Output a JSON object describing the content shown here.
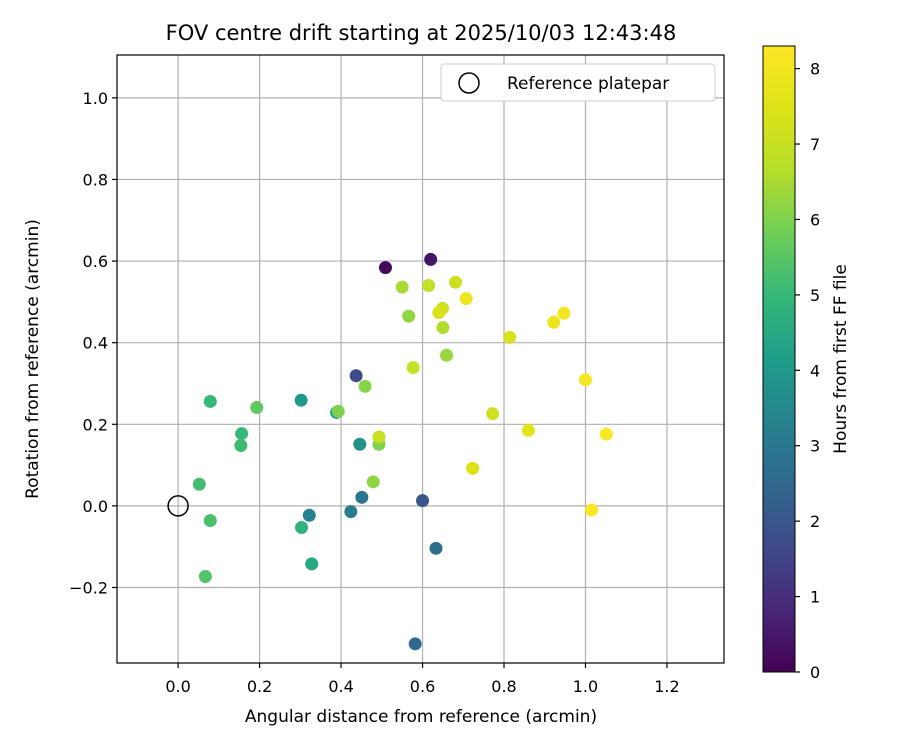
{
  "chart_data": {
    "type": "scatter",
    "title": "FOV centre drift starting at 2025/10/03 12:43:48",
    "xlabel": "Angular distance from reference (arcmin)",
    "ylabel": "Rotation from reference (arcmin)",
    "xlim": [
      -0.15,
      1.34
    ],
    "ylim": [
      -0.385,
      1.105
    ],
    "xticks": [
      0.0,
      0.2,
      0.4,
      0.6,
      0.8,
      1.0,
      1.2
    ],
    "xtick_labels": [
      "0.0",
      "0.2",
      "0.4",
      "0.6",
      "0.8",
      "1.0",
      "1.2"
    ],
    "yticks": [
      -0.2,
      0.0,
      0.2,
      0.4,
      0.6,
      0.8,
      1.0
    ],
    "ytick_labels": [
      "−0.2",
      "0.0",
      "0.2",
      "0.4",
      "0.6",
      "0.8",
      "1.0"
    ],
    "grid": true,
    "legend": {
      "label": "Reference platepar",
      "position": "top-right"
    },
    "reference_point": {
      "x": 0.0,
      "y": 0.0
    },
    "colorbar": {
      "label": "Hours from first FF file",
      "min": 0,
      "max": 8.3,
      "colormap": "viridis",
      "ticks": [
        0,
        1,
        2,
        3,
        4,
        5,
        6,
        7,
        8
      ],
      "tick_labels": [
        "0",
        "1",
        "2",
        "3",
        "4",
        "5",
        "6",
        "7",
        "8"
      ]
    },
    "points": [
      {
        "x": 0.509,
        "y": 0.584,
        "hours": 0.2
      },
      {
        "x": 0.62,
        "y": 0.604,
        "hours": 0.4
      },
      {
        "x": 0.437,
        "y": 0.319,
        "hours": 1.7
      },
      {
        "x": 0.6,
        "y": 0.013,
        "hours": 2.0
      },
      {
        "x": 0.633,
        "y": -0.104,
        "hours": 2.7
      },
      {
        "x": 0.582,
        "y": -0.338,
        "hours": 2.5
      },
      {
        "x": 0.451,
        "y": 0.021,
        "hours": 3.0
      },
      {
        "x": 0.424,
        "y": -0.014,
        "hours": 3.2
      },
      {
        "x": 0.322,
        "y": -0.023,
        "hours": 3.3
      },
      {
        "x": 0.446,
        "y": 0.151,
        "hours": 3.8
      },
      {
        "x": 0.302,
        "y": 0.259,
        "hours": 4.0
      },
      {
        "x": 0.389,
        "y": 0.229,
        "hours": 4.2
      },
      {
        "x": 0.328,
        "y": -0.142,
        "hours": 4.5
      },
      {
        "x": 0.303,
        "y": -0.053,
        "hours": 4.8
      },
      {
        "x": 0.079,
        "y": 0.256,
        "hours": 5.0
      },
      {
        "x": 0.156,
        "y": 0.177,
        "hours": 5.0
      },
      {
        "x": 0.154,
        "y": 0.148,
        "hours": 5.1
      },
      {
        "x": 0.052,
        "y": 0.053,
        "hours": 5.2
      },
      {
        "x": 0.079,
        "y": -0.036,
        "hours": 5.3
      },
      {
        "x": 0.067,
        "y": -0.173,
        "hours": 5.4
      },
      {
        "x": 0.193,
        "y": 0.241,
        "hours": 5.6
      },
      {
        "x": 0.393,
        "y": 0.232,
        "hours": 6.0
      },
      {
        "x": 0.493,
        "y": 0.151,
        "hours": 6.0
      },
      {
        "x": 0.459,
        "y": 0.293,
        "hours": 6.1
      },
      {
        "x": 0.479,
        "y": 0.059,
        "hours": 6.2
      },
      {
        "x": 0.566,
        "y": 0.465,
        "hours": 6.2
      },
      {
        "x": 0.659,
        "y": 0.369,
        "hours": 6.3
      },
      {
        "x": 0.55,
        "y": 0.536,
        "hours": 6.5
      },
      {
        "x": 0.65,
        "y": 0.437,
        "hours": 6.6
      },
      {
        "x": 0.615,
        "y": 0.54,
        "hours": 6.9
      },
      {
        "x": 0.577,
        "y": 0.339,
        "hours": 7.0
      },
      {
        "x": 0.493,
        "y": 0.169,
        "hours": 7.0
      },
      {
        "x": 0.681,
        "y": 0.548,
        "hours": 7.1
      },
      {
        "x": 0.649,
        "y": 0.484,
        "hours": 7.2
      },
      {
        "x": 0.64,
        "y": 0.474,
        "hours": 7.4
      },
      {
        "x": 0.772,
        "y": 0.226,
        "hours": 7.2
      },
      {
        "x": 0.814,
        "y": 0.413,
        "hours": 7.3
      },
      {
        "x": 0.723,
        "y": 0.092,
        "hours": 7.5
      },
      {
        "x": 0.86,
        "y": 0.185,
        "hours": 7.6
      },
      {
        "x": 0.707,
        "y": 0.508,
        "hours": 7.9
      },
      {
        "x": 0.922,
        "y": 0.45,
        "hours": 7.9
      },
      {
        "x": 0.947,
        "y": 0.472,
        "hours": 8.0
      },
      {
        "x": 1.0,
        "y": 0.309,
        "hours": 8.1
      },
      {
        "x": 1.051,
        "y": 0.176,
        "hours": 8.2
      },
      {
        "x": 1.015,
        "y": -0.01,
        "hours": 8.3
      }
    ]
  }
}
